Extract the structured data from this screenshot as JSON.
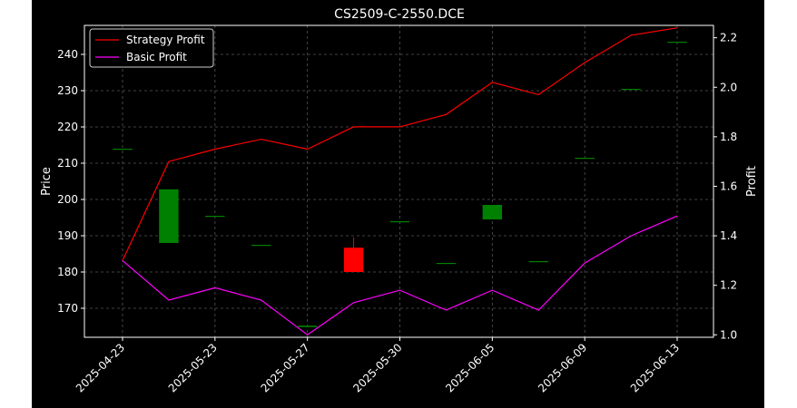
{
  "chart_data": {
    "type": "candlestick",
    "title": "CS2509-C-2550.DCE",
    "xlabel": "",
    "ylabel_left": "Price",
    "ylabel_right": "Profit",
    "x_tick_labels": [
      "2025-04-23",
      "2025-05-23",
      "2025-05-27",
      "2025-05-30",
      "2025-06-05",
      "2025-06-09",
      "2025-06-13"
    ],
    "ylim_left": [
      162,
      248
    ],
    "ylim_right": [
      0.99,
      2.25
    ],
    "y_ticks_left": [
      170,
      180,
      190,
      200,
      210,
      220,
      230,
      240
    ],
    "y_ticks_right": [
      1.0,
      1.2,
      1.4,
      1.6,
      1.8,
      2.0,
      2.2
    ],
    "grid": true,
    "legend_position": "top-left",
    "colors": {
      "strategy": "#ff0000",
      "basic": "#ff00ff",
      "up": "#008000",
      "down": "#ff0000",
      "background": "#000000",
      "grid": "#555555"
    },
    "candles": [
      {
        "index": 0,
        "open": 214.0,
        "close": 214.0,
        "high": 214.0,
        "low": 214.0
      },
      {
        "index": 1,
        "open": 188.0,
        "close": 202.8,
        "high": 202.8,
        "low": 188.0
      },
      {
        "index": 2,
        "open": 195.5,
        "close": 195.5,
        "high": 195.5,
        "low": 195.5
      },
      {
        "index": 3,
        "open": 187.5,
        "close": 187.5,
        "high": 187.5,
        "low": 187.5
      },
      {
        "index": 4,
        "open": 164.8,
        "close": 165.2,
        "high": 165.2,
        "low": 164.8
      },
      {
        "index": 5,
        "open": 186.7,
        "close": 180.0,
        "high": 189.5,
        "low": 180.0
      },
      {
        "index": 6,
        "open": 194.0,
        "close": 194.0,
        "high": 194.0,
        "low": 194.0
      },
      {
        "index": 7,
        "open": 182.5,
        "close": 182.5,
        "high": 182.5,
        "low": 182.5
      },
      {
        "index": 8,
        "open": 194.5,
        "close": 198.5,
        "high": 198.5,
        "low": 194.5
      },
      {
        "index": 9,
        "open": 183.0,
        "close": 183.0,
        "high": 183.0,
        "low": 183.0
      },
      {
        "index": 10,
        "open": 211.5,
        "close": 211.5,
        "high": 211.5,
        "low": 211.5
      },
      {
        "index": 11,
        "open": 230.5,
        "close": 230.5,
        "high": 230.5,
        "low": 230.5
      },
      {
        "index": 12,
        "open": 243.5,
        "close": 243.5,
        "high": 243.5,
        "low": 243.5
      }
    ],
    "series": [
      {
        "name": "Strategy Profit",
        "axis": "right",
        "values": [
          1.3,
          1.7,
          1.75,
          1.79,
          1.75,
          1.84,
          1.84,
          1.89,
          2.02,
          1.97,
          2.1,
          2.21,
          2.24
        ]
      },
      {
        "name": "Basic Profit",
        "axis": "right",
        "values": [
          1.3,
          1.14,
          1.19,
          1.14,
          1.0,
          1.13,
          1.18,
          1.1,
          1.18,
          1.1,
          1.29,
          1.4,
          1.48
        ]
      }
    ]
  }
}
